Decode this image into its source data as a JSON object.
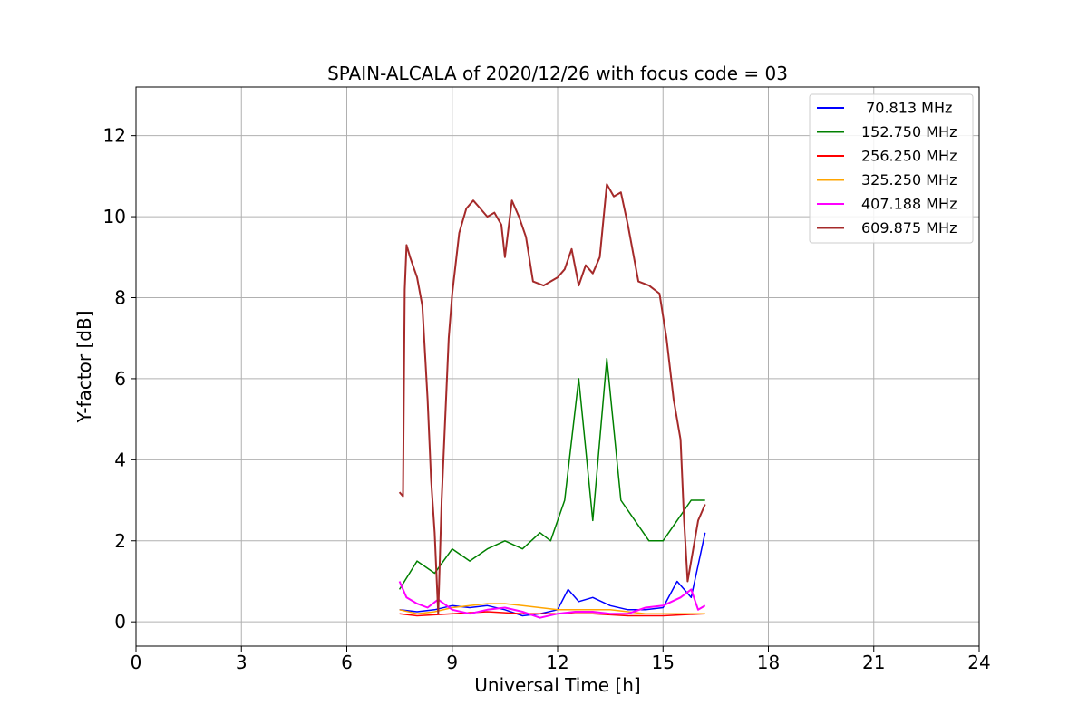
{
  "chart_data": {
    "type": "line",
    "title": "SPAIN-ALCALA of 2020/12/26 with focus code = 03",
    "xlabel": "Universal Time [h]",
    "ylabel": "Y-factor [dB]",
    "xlim": [
      0,
      24
    ],
    "ylim": [
      -0.6,
      13.2
    ],
    "xticks": [
      0,
      3,
      6,
      9,
      12,
      15,
      18,
      21,
      24
    ],
    "yticks": [
      0,
      2,
      4,
      6,
      8,
      10,
      12
    ],
    "grid": true,
    "legend_position": "top-right",
    "series": [
      {
        "name": " 70.813 MHz",
        "color": "#0000ff",
        "points": [
          [
            7.5,
            0.3
          ],
          [
            8.0,
            0.25
          ],
          [
            8.5,
            0.3
          ],
          [
            9.0,
            0.4
          ],
          [
            9.5,
            0.35
          ],
          [
            10.0,
            0.4
          ],
          [
            10.5,
            0.3
          ],
          [
            11.0,
            0.15
          ],
          [
            11.5,
            0.2
          ],
          [
            12.0,
            0.3
          ],
          [
            12.3,
            0.8
          ],
          [
            12.6,
            0.5
          ],
          [
            13.0,
            0.6
          ],
          [
            13.5,
            0.4
          ],
          [
            14.0,
            0.3
          ],
          [
            14.5,
            0.3
          ],
          [
            15.0,
            0.35
          ],
          [
            15.4,
            1.0
          ],
          [
            15.8,
            0.6
          ],
          [
            16.2,
            2.2
          ]
        ]
      },
      {
        "name": "152.750 MHz",
        "color": "#008000",
        "points": [
          [
            7.5,
            0.8
          ],
          [
            8.0,
            1.5
          ],
          [
            8.5,
            1.2
          ],
          [
            9.0,
            1.8
          ],
          [
            9.5,
            1.5
          ],
          [
            10.0,
            1.8
          ],
          [
            10.5,
            2.0
          ],
          [
            11.0,
            1.8
          ],
          [
            11.5,
            2.2
          ],
          [
            11.8,
            2.0
          ],
          [
            12.2,
            3.0
          ],
          [
            12.6,
            6.0
          ],
          [
            13.0,
            2.5
          ],
          [
            13.4,
            6.5
          ],
          [
            13.8,
            3.0
          ],
          [
            14.2,
            2.5
          ],
          [
            14.6,
            2.0
          ],
          [
            15.0,
            2.0
          ],
          [
            15.4,
            2.5
          ],
          [
            15.8,
            3.0
          ],
          [
            16.2,
            3.0
          ]
        ]
      },
      {
        "name": "256.250 MHz",
        "color": "#ff0000",
        "points": [
          [
            7.5,
            0.2
          ],
          [
            8.0,
            0.15
          ],
          [
            9.0,
            0.2
          ],
          [
            10.0,
            0.25
          ],
          [
            11.0,
            0.2
          ],
          [
            12.0,
            0.2
          ],
          [
            13.0,
            0.2
          ],
          [
            14.0,
            0.15
          ],
          [
            15.0,
            0.15
          ],
          [
            16.2,
            0.2
          ]
        ]
      },
      {
        "name": "325.250 MHz",
        "color": "#ffa500",
        "points": [
          [
            7.5,
            0.3
          ],
          [
            8.0,
            0.2
          ],
          [
            8.5,
            0.25
          ],
          [
            9.0,
            0.35
          ],
          [
            9.5,
            0.4
          ],
          [
            10.0,
            0.45
          ],
          [
            10.5,
            0.45
          ],
          [
            11.0,
            0.4
          ],
          [
            11.5,
            0.35
          ],
          [
            12.0,
            0.3
          ],
          [
            12.5,
            0.3
          ],
          [
            13.0,
            0.3
          ],
          [
            13.5,
            0.3
          ],
          [
            14.0,
            0.25
          ],
          [
            14.5,
            0.2
          ],
          [
            15.0,
            0.2
          ],
          [
            15.5,
            0.2
          ],
          [
            16.2,
            0.2
          ]
        ]
      },
      {
        "name": "407.188 MHz",
        "color": "#ff00ff",
        "points": [
          [
            7.5,
            1.0
          ],
          [
            7.7,
            0.6
          ],
          [
            8.0,
            0.45
          ],
          [
            8.3,
            0.35
          ],
          [
            8.6,
            0.55
          ],
          [
            9.0,
            0.3
          ],
          [
            9.5,
            0.2
          ],
          [
            10.0,
            0.3
          ],
          [
            10.5,
            0.35
          ],
          [
            11.0,
            0.25
          ],
          [
            11.5,
            0.1
          ],
          [
            12.0,
            0.2
          ],
          [
            12.5,
            0.25
          ],
          [
            13.0,
            0.25
          ],
          [
            13.5,
            0.2
          ],
          [
            14.0,
            0.2
          ],
          [
            14.5,
            0.35
          ],
          [
            15.0,
            0.4
          ],
          [
            15.5,
            0.6
          ],
          [
            15.8,
            0.8
          ],
          [
            16.0,
            0.3
          ],
          [
            16.2,
            0.4
          ]
        ]
      },
      {
        "name": "609.875 MHz",
        "color": "#a52a2a",
        "points": [
          [
            7.5,
            3.2
          ],
          [
            7.6,
            3.1
          ],
          [
            7.65,
            8.2
          ],
          [
            7.7,
            9.3
          ],
          [
            7.8,
            9.0
          ],
          [
            8.0,
            8.5
          ],
          [
            8.15,
            7.8
          ],
          [
            8.3,
            5.5
          ],
          [
            8.4,
            3.5
          ],
          [
            8.5,
            2.2
          ],
          [
            8.6,
            0.2
          ],
          [
            8.7,
            3.0
          ],
          [
            8.8,
            5.0
          ],
          [
            8.9,
            7.0
          ],
          [
            9.0,
            8.1
          ],
          [
            9.2,
            9.6
          ],
          [
            9.4,
            10.2
          ],
          [
            9.6,
            10.4
          ],
          [
            9.8,
            10.2
          ],
          [
            10.0,
            10.0
          ],
          [
            10.2,
            10.1
          ],
          [
            10.4,
            9.8
          ],
          [
            10.5,
            9.0
          ],
          [
            10.7,
            10.4
          ],
          [
            10.9,
            10.0
          ],
          [
            11.1,
            9.5
          ],
          [
            11.3,
            8.4
          ],
          [
            11.6,
            8.3
          ],
          [
            12.0,
            8.5
          ],
          [
            12.2,
            8.7
          ],
          [
            12.4,
            9.2
          ],
          [
            12.6,
            8.3
          ],
          [
            12.8,
            8.8
          ],
          [
            13.0,
            8.6
          ],
          [
            13.2,
            9.0
          ],
          [
            13.4,
            10.8
          ],
          [
            13.6,
            10.5
          ],
          [
            13.8,
            10.6
          ],
          [
            14.0,
            9.8
          ],
          [
            14.3,
            8.4
          ],
          [
            14.6,
            8.3
          ],
          [
            14.9,
            8.1
          ],
          [
            15.1,
            7.0
          ],
          [
            15.3,
            5.5
          ],
          [
            15.5,
            4.5
          ],
          [
            15.6,
            2.5
          ],
          [
            15.7,
            1.0
          ],
          [
            15.8,
            1.5
          ],
          [
            16.0,
            2.5
          ],
          [
            16.2,
            2.9
          ]
        ]
      }
    ]
  }
}
